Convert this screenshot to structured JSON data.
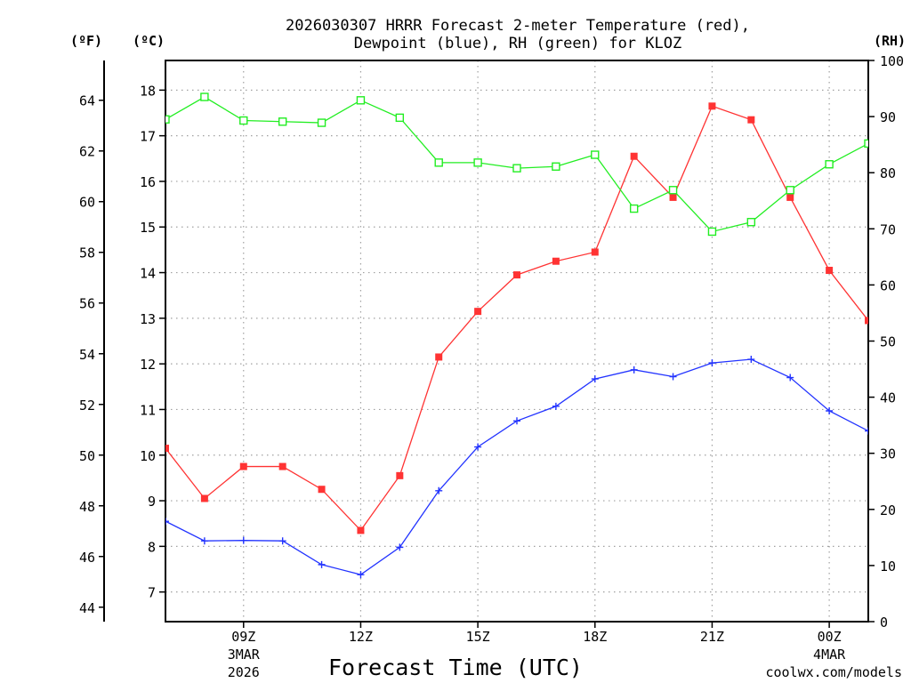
{
  "chart_data": {
    "type": "line",
    "title": "2026030307 HRRR Forecast 2-meter Temperature (red),",
    "subtitle": "Dewpoint (blue), RH (green) for KLOZ",
    "xlabel": "Forecast Time (UTC)",
    "left_outer_label": "(ºF)",
    "left_inner_label": "(ºC)",
    "right_label": "(RH)",
    "credit": "coolwx.com/models",
    "grid": true,
    "x_hours": [
      7,
      8,
      9,
      10,
      11,
      12,
      13,
      14,
      15,
      16,
      17,
      18,
      19,
      20,
      21,
      22,
      23,
      24,
      25
    ],
    "xlim": [
      7,
      25
    ],
    "x_ticks": [
      {
        "hour": 9,
        "label": "09Z",
        "sub1": "3MAR",
        "sub2": "2026"
      },
      {
        "hour": 12,
        "label": "12Z",
        "sub1": "",
        "sub2": ""
      },
      {
        "hour": 15,
        "label": "15Z",
        "sub1": "",
        "sub2": ""
      },
      {
        "hour": 18,
        "label": "18Z",
        "sub1": "",
        "sub2": ""
      },
      {
        "hour": 21,
        "label": "21Z",
        "sub1": "",
        "sub2": ""
      },
      {
        "hour": 24,
        "label": "00Z",
        "sub1": "4MAR",
        "sub2": ""
      }
    ],
    "celsius_ticks": [
      7,
      8,
      9,
      10,
      11,
      12,
      13,
      14,
      15,
      16,
      17,
      18
    ],
    "celsius_range": [
      6.35,
      18.65
    ],
    "fahrenheit_ticks": [
      44,
      46,
      48,
      50,
      52,
      54,
      56,
      58,
      60,
      62,
      64
    ],
    "rh_ticks": [
      0,
      10,
      20,
      30,
      40,
      50,
      60,
      70,
      80,
      90,
      100
    ],
    "rh_range": [
      0,
      100
    ],
    "series": [
      {
        "name": "Temperature",
        "unit": "C",
        "color": "#ff3333",
        "marker": "filled-square",
        "values": [
          10.15,
          9.05,
          9.75,
          9.75,
          9.25,
          8.35,
          9.55,
          12.15,
          13.15,
          13.95,
          14.25,
          14.45,
          16.55,
          15.65,
          17.65,
          17.35,
          15.65,
          14.05,
          12.95
        ]
      },
      {
        "name": "Dewpoint",
        "unit": "C",
        "color": "#2233ff",
        "marker": "plus",
        "values": [
          8.55,
          8.12,
          8.13,
          8.12,
          7.6,
          7.38,
          7.98,
          9.22,
          10.18,
          10.75,
          11.07,
          11.67,
          11.87,
          11.72,
          12.02,
          12.1,
          11.7,
          10.97,
          10.53
        ]
      },
      {
        "name": "RH",
        "unit": "%",
        "color": "#22ee22",
        "marker": "open-square",
        "values": [
          89.5,
          93.5,
          89.3,
          89.1,
          88.9,
          92.9,
          89.8,
          81.8,
          81.8,
          80.8,
          81.1,
          83.2,
          73.6,
          76.9,
          69.5,
          71.2,
          76.9,
          81.5,
          85.2
        ]
      }
    ]
  }
}
